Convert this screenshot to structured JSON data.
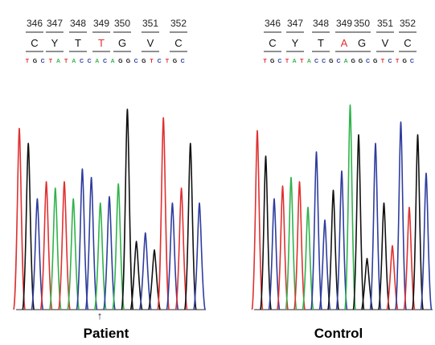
{
  "colors": {
    "A": "#2fb34a",
    "C": "#2e3d9e",
    "G": "#111111",
    "T": "#e03030",
    "aa_default": "#111111",
    "aa_highlight": "#e03030",
    "baseline": "#555555"
  },
  "panels": [
    {
      "id": "patient",
      "caption": "Patient",
      "codon_numbers": [
        "346",
        "347",
        "348",
        "349",
        "350",
        "351",
        "352"
      ],
      "amino_acids": [
        {
          "label": "C",
          "highlight": false
        },
        {
          "label": "Y",
          "highlight": false
        },
        {
          "label": "T",
          "highlight": false
        },
        {
          "label": "T",
          "highlight": true
        },
        {
          "label": "G",
          "highlight": false
        },
        {
          "label": "V",
          "highlight": false
        },
        {
          "label": "C",
          "highlight": false
        }
      ],
      "bases": [
        "T",
        "G",
        "C",
        "T",
        "A",
        "T",
        "A",
        "C",
        "C",
        "A",
        "C",
        "A",
        "G",
        "G",
        "C",
        "G",
        "T",
        "C",
        "T",
        "G",
        "C"
      ],
      "peak_heights": [
        0.85,
        0.78,
        0.52,
        0.6,
        0.57,
        0.6,
        0.52,
        0.66,
        0.62,
        0.5,
        0.53,
        0.59,
        0.94,
        0.32,
        0.36,
        0.28,
        0.9,
        0.5,
        0.57,
        0.78,
        0.5
      ],
      "mutation_marker": "↑"
    },
    {
      "id": "control",
      "caption": "Control",
      "codon_numbers": [
        "346",
        "347",
        "348",
        "349",
        "350",
        "351",
        "352"
      ],
      "amino_acids": [
        {
          "label": "C",
          "highlight": false
        },
        {
          "label": "Y",
          "highlight": false
        },
        {
          "label": "T",
          "highlight": false
        },
        {
          "label": "A",
          "highlight": true
        },
        {
          "label": "G",
          "highlight": false
        },
        {
          "label": "V",
          "highlight": false
        },
        {
          "label": "C",
          "highlight": false
        }
      ],
      "bases": [
        "T",
        "G",
        "C",
        "T",
        "A",
        "T",
        "A",
        "C",
        "C",
        "G",
        "C",
        "A",
        "G",
        "G",
        "C",
        "G",
        "T",
        "C",
        "T",
        "G",
        "C"
      ],
      "peak_heights": [
        0.84,
        0.72,
        0.52,
        0.58,
        0.62,
        0.6,
        0.48,
        0.74,
        0.42,
        0.56,
        0.65,
        0.96,
        0.82,
        0.24,
        0.78,
        0.5,
        0.3,
        0.88,
        0.48,
        0.82,
        0.64
      ],
      "mutation_marker": ""
    }
  ]
}
